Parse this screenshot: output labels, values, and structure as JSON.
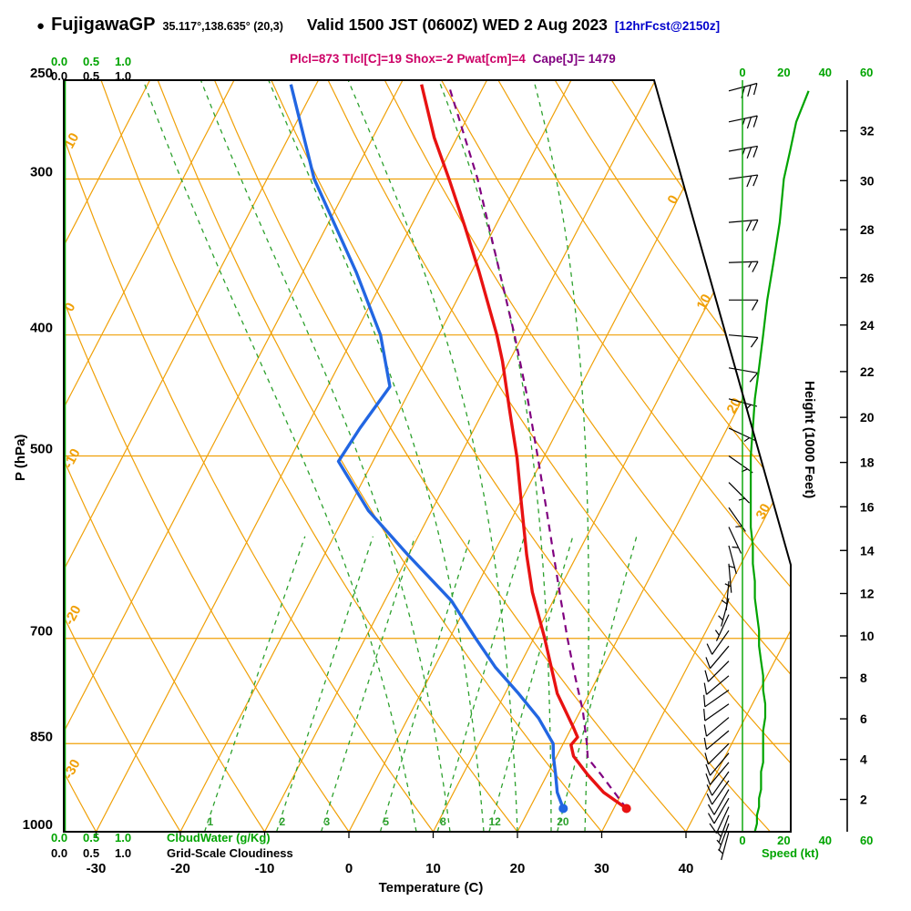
{
  "header": {
    "bullet": "●",
    "station": "FujigawaGP",
    "coords": "35.117°,138.635° (20,3)",
    "valid": "Valid 1500 JST (0600Z) WED 2 Aug 2023",
    "fcst": "[12hrFcst@2150z]",
    "params_main": "Plcl=873 Tlcl[C]=19 Shox=-2 Pwat[cm]=4",
    "params_cape": "Cape[J]= 1479"
  },
  "axes": {
    "pressure_label": "P (hPa)",
    "pressure_ticks": [
      250,
      300,
      400,
      500,
      700,
      850,
      1000
    ],
    "temp_label": "Temperature (C)",
    "temp_ticks": [
      -30,
      -20,
      -10,
      0,
      10,
      20,
      30,
      40
    ],
    "height_label": "Height (1000 Feet)",
    "height_ticks": [
      2,
      4,
      6,
      8,
      10,
      12,
      14,
      16,
      18,
      20,
      22,
      24,
      26,
      28,
      30,
      32
    ],
    "speed_label": "Speed (kt)",
    "speed_ticks": [
      0,
      20,
      40,
      60
    ],
    "cloudwater_label": "CloudWater (g/Kg)",
    "cloudiness_label": "Grid-Scale Cloudiness",
    "cloud_scale": [
      "0.0",
      "0.5",
      "1.0"
    ],
    "adiabat_edge_labels": [
      10,
      0,
      -10,
      -20,
      -30
    ],
    "isotherm_edge_labels": [
      0,
      10,
      20,
      30
    ],
    "mixing_labels": [
      1,
      2,
      3,
      5,
      8,
      12,
      20
    ]
  },
  "colors": {
    "grid_orange": "#f0a007",
    "mixing_green": "#2ca02c",
    "axis_green": "#00a400",
    "profile_red": "#e81212",
    "profile_blue": "#2266e2",
    "parcel_purple": "#800080",
    "barb_black": "#000000",
    "border_black": "#000000"
  },
  "chart_data": {
    "type": "skewt-sounding",
    "pressure_range_hPa": [
      250,
      1000
    ],
    "temp_axis_range_C": [
      -30,
      40
    ],
    "speed_axis_range_kt": [
      0,
      60
    ],
    "indices": {
      "plcl_hPa": 873,
      "tlcl_C": 19,
      "showalter": -2,
      "pwat_cm": 4,
      "cape_J": 1479
    },
    "surface": {
      "pressure_hPa": 958,
      "temp_C": 31.5,
      "dewpoint_C": 24
    },
    "temperature_profile": {
      "pressure_hPa": [
        958,
        930,
        900,
        870,
        852,
        840,
        825,
        775,
        700,
        643,
        600,
        543,
        502,
        460,
        420,
        400,
        356,
        328,
        300,
        278,
        252
      ],
      "temp_C": [
        31.5,
        27.8,
        24.8,
        22.0,
        21.0,
        21.3,
        20.2,
        16.2,
        11.3,
        7.0,
        4.0,
        0.0,
        -3.1,
        -6.9,
        -10.8,
        -13.1,
        -19.1,
        -23.5,
        -28.4,
        -32.7,
        -37.5
      ]
    },
    "dewpoint_profile": {
      "pressure_hPa": [
        958,
        930,
        900,
        870,
        850,
        811,
        775,
        738,
        700,
        653,
        600,
        553,
        505,
        475,
        440,
        400,
        356,
        300,
        252
      ],
      "dewpoint_C": [
        24.0,
        22.3,
        21.0,
        19.6,
        18.8,
        15.5,
        11.6,
        7.2,
        3.1,
        -2.1,
        -10.1,
        -17.5,
        -24.1,
        -23.6,
        -22.6,
        -26.9,
        -33.7,
        -44.4,
        -53.0
      ]
    },
    "parcel_profile": {
      "pressure_hPa": [
        958,
        900,
        873,
        850,
        800,
        750,
        700,
        650,
        600,
        550,
        500,
        450,
        400,
        350,
        300,
        252
      ],
      "temp_C": [
        31.5,
        26.4,
        23.8,
        22.8,
        20.3,
        17.2,
        14.0,
        10.7,
        7.2,
        3.4,
        -0.8,
        -5.5,
        -11.0,
        -17.5,
        -25.0,
        -34.3
      ]
    },
    "wind_profile": {
      "pressure_hPa": [
        1000,
        985,
        970,
        955,
        940,
        925,
        910,
        895,
        880,
        865,
        850,
        830,
        810,
        790,
        770,
        750,
        730,
        710,
        690,
        670,
        650,
        630,
        610,
        590,
        570,
        550,
        525,
        500,
        475,
        450,
        425,
        400,
        375,
        350,
        325,
        300,
        285,
        270,
        255
      ],
      "dir_deg": [
        195,
        200,
        200,
        205,
        210,
        210,
        215,
        215,
        220,
        220,
        225,
        230,
        230,
        235,
        235,
        230,
        225,
        220,
        215,
        205,
        195,
        185,
        175,
        165,
        155,
        145,
        135,
        125,
        115,
        105,
        100,
        95,
        90,
        88,
        85,
        82,
        80,
        78,
        75
      ],
      "speed_kt": [
        6,
        7,
        7,
        8,
        8,
        9,
        9,
        9,
        10,
        10,
        10,
        10,
        11,
        11,
        10,
        10,
        9,
        8,
        8,
        7,
        6,
        6,
        5,
        5,
        4,
        4,
        4,
        4,
        5,
        6,
        8,
        10,
        12,
        15,
        18,
        20,
        23,
        26,
        32
      ]
    },
    "grid": {
      "isotherm_step_C": 10,
      "dry_adiabat_step_C": 10,
      "moist_adiabat_values_C": [
        8,
        12,
        16,
        20,
        24,
        28
      ],
      "mixing_ratio_values_gkg": [
        1,
        2,
        3,
        5,
        8,
        12,
        20
      ]
    },
    "cloudwater_profile_gkg": 0,
    "cloudiness_profile": 0
  }
}
